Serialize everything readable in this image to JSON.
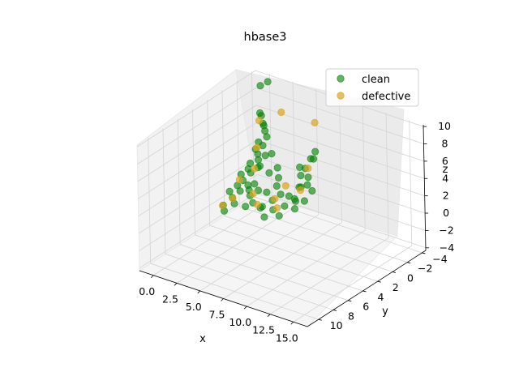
{
  "chart_data": {
    "type": "scatter",
    "projection": "3d",
    "title": "hbase3",
    "xlabel": "x",
    "ylabel": "y",
    "zlabel": "z",
    "xlim": [
      -1.5,
      16.5
    ],
    "ylim": [
      -4.5,
      11.5
    ],
    "zlim": [
      -4.3,
      10.2
    ],
    "xticks": [
      "0.0",
      "2.5",
      "5.0",
      "7.5",
      "10.0",
      "12.5",
      "15.0"
    ],
    "yticks": [
      "−4",
      "−2",
      "0",
      "2",
      "4",
      "6",
      "8",
      "10"
    ],
    "zticks": [
      "−4",
      "−2",
      "0",
      "2",
      "4",
      "6",
      "8",
      "10"
    ],
    "grid": true,
    "legend_position": "top-right",
    "series": [
      {
        "name": "clean",
        "color": "#008000",
        "alpha": 0.6,
        "points": [
          [
            0.2,
            -4.0,
            9.6
          ],
          [
            0.2,
            -3.0,
            9.7
          ],
          [
            0.1,
            -3.0,
            6.5
          ],
          [
            0.0,
            -3.3,
            6.0
          ],
          [
            0.5,
            -3.0,
            5.2
          ],
          [
            0.0,
            -3.5,
            5.0
          ],
          [
            0.2,
            -3.5,
            4.2
          ],
          [
            0.8,
            -3.0,
            4.0
          ],
          [
            0.3,
            -2.5,
            3.5
          ],
          [
            0.5,
            -2.8,
            3.0
          ],
          [
            0.2,
            -2.2,
            2.8
          ],
          [
            0.6,
            -2.0,
            2.5
          ],
          [
            1.0,
            -2.5,
            2.2
          ],
          [
            0.8,
            -1.8,
            2.0
          ],
          [
            0.4,
            -1.2,
            1.8
          ],
          [
            1.2,
            -1.5,
            1.6
          ],
          [
            0.5,
            -0.8,
            1.4
          ],
          [
            1.0,
            -0.5,
            1.3
          ],
          [
            0.2,
            -0.2,
            1.0
          ],
          [
            0.8,
            0.3,
            0.8
          ],
          [
            1.5,
            0.5,
            0.6
          ],
          [
            0.6,
            0.8,
            0.4
          ],
          [
            1.2,
            1.2,
            0.2
          ],
          [
            0.3,
            1.5,
            0.0
          ],
          [
            1.0,
            2.0,
            -0.2
          ],
          [
            1.6,
            2.5,
            -0.4
          ],
          [
            0.8,
            3.0,
            -0.6
          ],
          [
            1.3,
            3.5,
            -0.8
          ],
          [
            2.0,
            1.0,
            0.5
          ],
          [
            2.5,
            1.5,
            0.3
          ],
          [
            2.2,
            0.5,
            1.0
          ],
          [
            3.0,
            1.0,
            0.8
          ],
          [
            3.2,
            2.0,
            0.0
          ],
          [
            2.8,
            2.5,
            -0.3
          ],
          [
            3.5,
            0.5,
            0.5
          ],
          [
            3.8,
            1.5,
            -0.5
          ],
          [
            4.0,
            2.0,
            -0.3
          ],
          [
            4.5,
            1.0,
            0.2
          ],
          [
            4.2,
            0.0,
            1.2
          ],
          [
            5.0,
            0.5,
            0.8
          ],
          [
            5.2,
            1.8,
            -0.2
          ],
          [
            4.8,
            2.5,
            -0.8
          ],
          [
            5.5,
            0.0,
            0.5
          ],
          [
            5.8,
            1.0,
            0.0
          ],
          [
            6.0,
            2.0,
            -0.5
          ],
          [
            6.2,
            -0.5,
            1.5
          ],
          [
            6.5,
            0.5,
            0.8
          ],
          [
            6.0,
            -1.0,
            2.5
          ],
          [
            5.5,
            -1.5,
            3.0
          ],
          [
            6.3,
            -2.0,
            4.0
          ],
          [
            6.5,
            -1.0,
            3.5
          ],
          [
            6.8,
            0.0,
            2.0
          ],
          [
            7.0,
            1.0,
            1.0
          ],
          [
            7.2,
            -0.5,
            3.0
          ],
          [
            7.0,
            -1.5,
            4.5
          ],
          [
            6.8,
            -2.0,
            5.0
          ],
          [
            7.5,
            0.0,
            2.5
          ],
          [
            7.3,
            1.5,
            0.5
          ],
          [
            7.8,
            0.8,
            1.2
          ],
          [
            8.0,
            0.0,
            2.0
          ],
          [
            3.5,
            -1.0,
            2.5
          ],
          [
            2.5,
            -1.5,
            3.5
          ],
          [
            3.0,
            -0.5,
            2.0
          ],
          [
            4.0,
            -0.5,
            1.8
          ],
          [
            1.8,
            -0.5,
            2.2
          ]
        ]
      },
      {
        "name": "defective",
        "color": "#daa520",
        "alpha": 0.7,
        "points": [
          [
            0.0,
            -3.0,
            5.6
          ],
          [
            2.0,
            -3.5,
            7.0
          ],
          [
            6.0,
            -3.0,
            7.5
          ],
          [
            0.5,
            -2.0,
            3.2
          ],
          [
            1.0,
            -1.0,
            1.5
          ],
          [
            0.6,
            0.5,
            0.9
          ],
          [
            1.2,
            2.2,
            -0.1
          ],
          [
            0.9,
            3.2,
            -0.5
          ],
          [
            2.6,
            1.2,
            0.4
          ],
          [
            3.5,
            1.8,
            -0.2
          ],
          [
            4.6,
            0.8,
            0.3
          ],
          [
            5.4,
            1.5,
            -0.1
          ],
          [
            6.4,
            -1.5,
            3.2
          ],
          [
            6.9,
            0.2,
            1.8
          ],
          [
            5.0,
            -0.2,
            1.4
          ]
        ]
      }
    ]
  }
}
